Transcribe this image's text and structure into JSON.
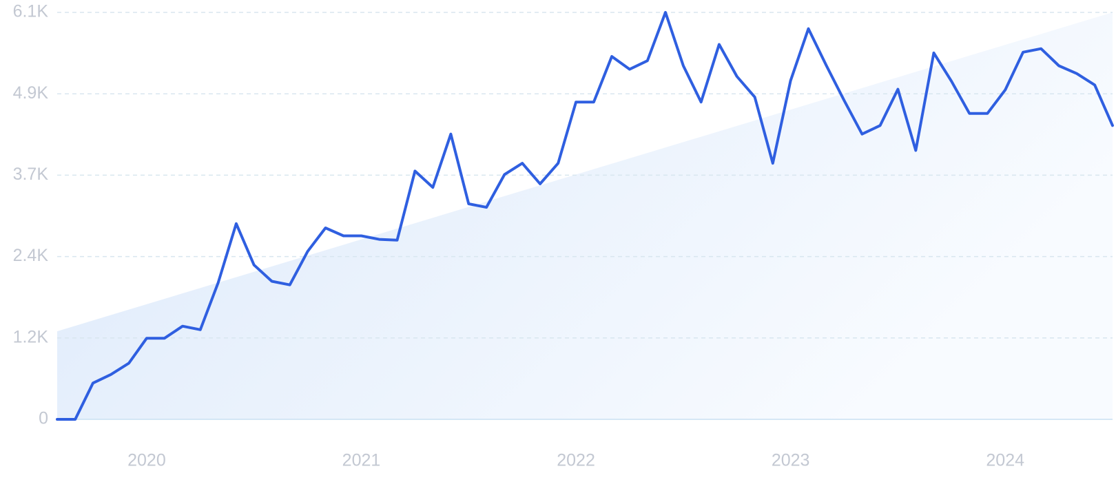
{
  "chart_data": {
    "type": "line",
    "x": [
      2019.583,
      2019.667,
      2019.75,
      2019.833,
      2019.917,
      2020,
      2020.083,
      2020.167,
      2020.25,
      2020.333,
      2020.417,
      2020.5,
      2020.583,
      2020.667,
      2020.75,
      2020.833,
      2020.917,
      2021,
      2021.083,
      2021.167,
      2021.25,
      2021.333,
      2021.417,
      2021.5,
      2021.583,
      2021.667,
      2021.75,
      2021.833,
      2021.917,
      2022,
      2022.083,
      2022.167,
      2022.25,
      2022.333,
      2022.417,
      2022.5,
      2022.583,
      2022.667,
      2022.75,
      2022.833,
      2022.917,
      2023,
      2023.083,
      2023.167,
      2023.25,
      2023.333,
      2023.417,
      2023.5,
      2023.583,
      2023.667,
      2023.75,
      2023.833,
      2023.917,
      2024,
      2024.083,
      2024.167,
      2024.25,
      2024.333,
      2024.417,
      2024.5
    ],
    "values": [
      0,
      0,
      544,
      672,
      842,
      1216,
      1216,
      1397,
      1344,
      2048,
      2933,
      2314,
      2069,
      2016,
      2517,
      2869,
      2751,
      2751,
      2698,
      2687,
      3722,
      3477,
      4276,
      3231,
      3178,
      3669,
      3839,
      3530,
      3839,
      4756,
      4756,
      5439,
      5247,
      5375,
      6100,
      5300,
      4756,
      5620,
      5140,
      4831,
      3839,
      5076,
      5855,
      5300,
      4778,
      4276,
      4404,
      4948,
      4031,
      5492,
      5066,
      4586,
      4586,
      4938,
      5503,
      5556,
      5300,
      5183,
      5012,
      4404
    ],
    "color": "#2f5fe0",
    "trend": [
      1320,
      6100
    ],
    "xlim": [
      2019.583,
      2024.5
    ],
    "xticks": [
      2020,
      2021,
      2022,
      2023,
      2024
    ],
    "ylim": [
      0,
      6100
    ],
    "yticks": [
      0,
      {
        "value": 1220,
        "label": "1.2K"
      },
      {
        "value": 2440,
        "label": "2.4K"
      },
      {
        "value": 3660,
        "label": "3.7K"
      },
      {
        "value": 4880,
        "label": "4.9K"
      },
      {
        "value": 6100,
        "label": "6.1K"
      }
    ],
    "grid": true
  }
}
